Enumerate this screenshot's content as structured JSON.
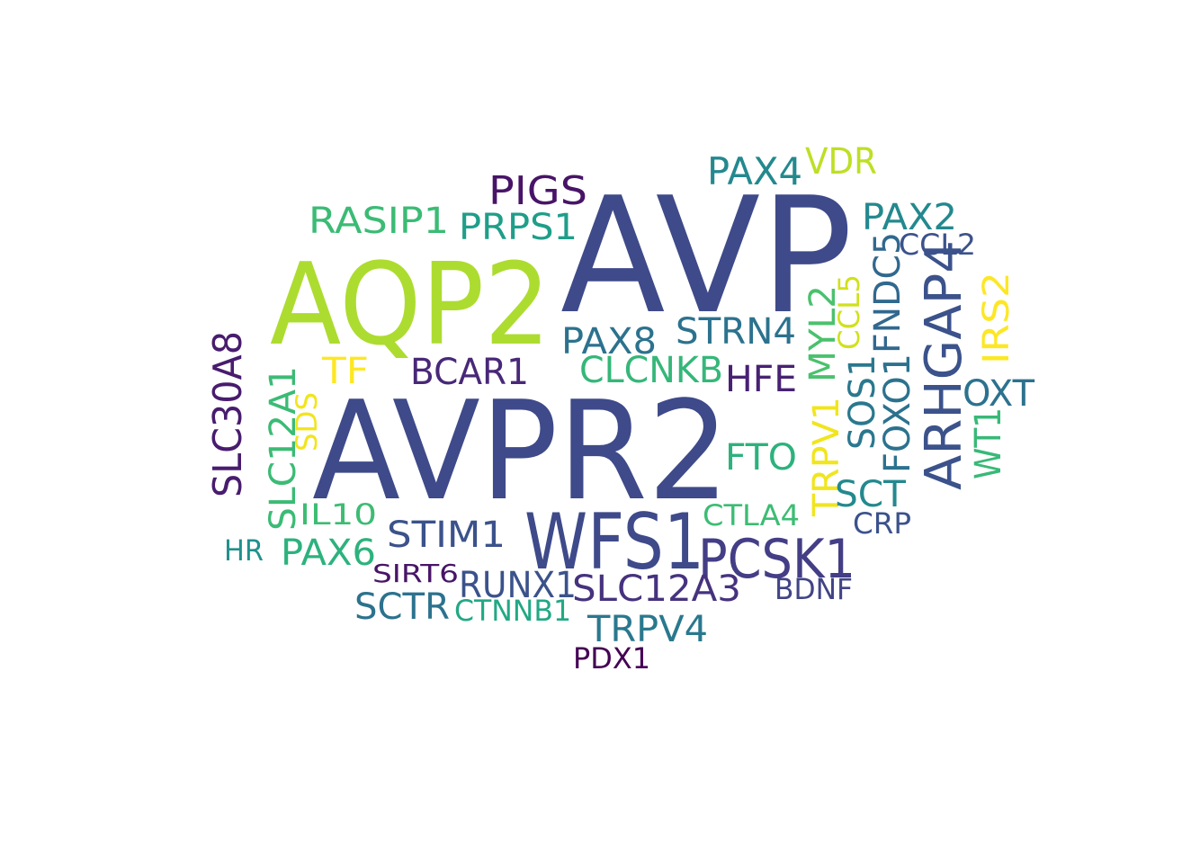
{
  "words": [
    {
      "text": "AVP",
      "color": "#3e4a89"
    },
    {
      "text": "AVPR2",
      "color": "#3e4a89"
    },
    {
      "text": "AQP2",
      "color": "#addc30"
    },
    {
      "text": "WFS1",
      "color": "#3e4a89"
    },
    {
      "text": "PCSK1",
      "color": "#433e85"
    },
    {
      "text": "ARHGAP4",
      "color": "#3b528b"
    },
    {
      "text": "SLC30A8",
      "color": "#481c6e"
    },
    {
      "text": "PIGS",
      "color": "#481467"
    },
    {
      "text": "PAX4",
      "color": "#23898e"
    },
    {
      "text": "VDR",
      "color": "#bddf26"
    },
    {
      "text": "RASIP1",
      "color": "#3bbb75"
    },
    {
      "text": "PRPS1",
      "color": "#1f9e89"
    },
    {
      "text": "PAX2",
      "color": "#23898e"
    },
    {
      "text": "CCL2",
      "color": "#3b528b"
    },
    {
      "text": "FNDC5",
      "color": "#31688e"
    },
    {
      "text": "IRS2",
      "color": "#fde725"
    },
    {
      "text": "STRN4",
      "color": "#2c728e"
    },
    {
      "text": "PAX8",
      "color": "#2c728e"
    },
    {
      "text": "CLCNKB",
      "color": "#35b779"
    },
    {
      "text": "TF",
      "color": "#fde725"
    },
    {
      "text": "BCAR1",
      "color": "#482878"
    },
    {
      "text": "HFE",
      "color": "#482173"
    },
    {
      "text": "MYL2",
      "color": "#4ac16d"
    },
    {
      "text": "CCL5",
      "color": "#d0e11c"
    },
    {
      "text": "SOS1",
      "color": "#2a788e"
    },
    {
      "text": "FOXO1",
      "color": "#2c728e"
    },
    {
      "text": "OXT",
      "color": "#2c728e"
    },
    {
      "text": "WT1",
      "color": "#38b977"
    },
    {
      "text": "SLC12A1",
      "color": "#3bbb75"
    },
    {
      "text": "SDS",
      "color": "#f1e51d"
    },
    {
      "text": "FTO",
      "color": "#2db27d"
    },
    {
      "text": "TRPV1",
      "color": "#f1e51d"
    },
    {
      "text": "SCT",
      "color": "#23898e"
    },
    {
      "text": "CTLA4",
      "color": "#3dbc74"
    },
    {
      "text": "CRP",
      "color": "#3b528b"
    },
    {
      "text": "IL10",
      "color": "#3dbc74"
    },
    {
      "text": "STIM1",
      "color": "#3b528b"
    },
    {
      "text": "HR",
      "color": "#21918c"
    },
    {
      "text": "PAX6",
      "color": "#2db27d"
    },
    {
      "text": "SIRT6",
      "color": "#481467"
    },
    {
      "text": "RUNX1",
      "color": "#3b528b"
    },
    {
      "text": "SLC12A3",
      "color": "#46327e"
    },
    {
      "text": "BDNF",
      "color": "#414487"
    },
    {
      "text": "SCTR",
      "color": "#2c728e"
    },
    {
      "text": "CTNNB1",
      "color": "#22a884"
    },
    {
      "text": "TRPV4",
      "color": "#2a788e"
    },
    {
      "text": "PDX1",
      "color": "#440154"
    }
  ]
}
